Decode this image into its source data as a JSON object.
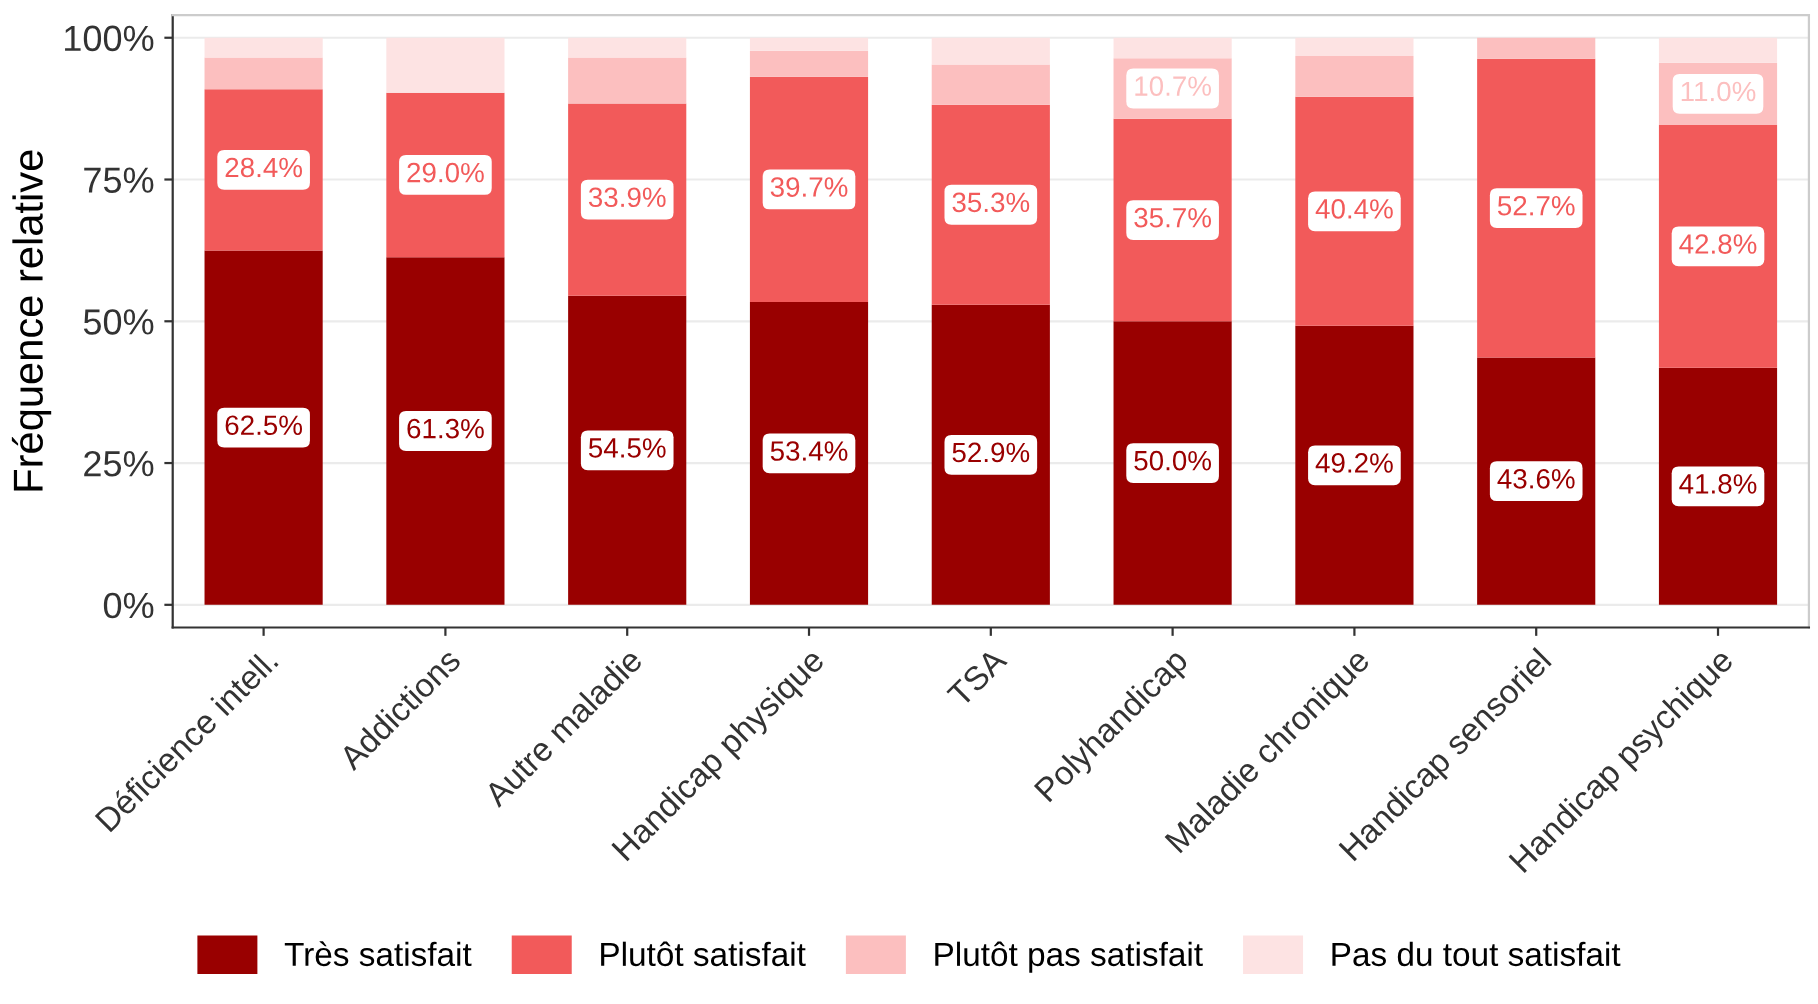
{
  "chart_data": {
    "type": "bar",
    "stacked": true,
    "ylabel": "Fréquence relative",
    "categories": [
      "Déficience intell.",
      "Addictions",
      "Autre maladie",
      "Handicap physique",
      "TSA",
      "Polyhandicap",
      "Maladie chronique",
      "Handicap sensoriel",
      "Handicap psychique"
    ],
    "series": [
      {
        "name": "Très satisfait",
        "color": "#990000",
        "values": [
          62.5,
          61.3,
          54.5,
          53.4,
          52.9,
          50.0,
          49.2,
          43.6,
          41.8
        ],
        "value_labels": [
          "62.5%",
          "61.3%",
          "54.5%",
          "53.4%",
          "52.9%",
          "50.0%",
          "49.2%",
          "43.6%",
          "41.8%"
        ]
      },
      {
        "name": "Plutôt satisfait",
        "color": "#f25a5a",
        "values": [
          28.4,
          29.0,
          33.9,
          39.7,
          35.3,
          35.7,
          40.4,
          52.7,
          42.8
        ],
        "value_labels": [
          "28.4%",
          "29.0%",
          "33.9%",
          "39.7%",
          "35.3%",
          "35.7%",
          "40.4%",
          "52.7%",
          "42.8%"
        ]
      },
      {
        "name": "Plutôt pas satisfait",
        "color": "#fcbfbf",
        "values": [
          5.6,
          0,
          8.1,
          4.6,
          7.1,
          10.7,
          7.2,
          3.7,
          11.0
        ],
        "value_labels": [
          null,
          null,
          null,
          null,
          null,
          "10.7%",
          null,
          null,
          "11.0%"
        ]
      },
      {
        "name": "Pas du tout satisfait",
        "color": "#fde3e3",
        "values": [
          3.5,
          9.7,
          3.5,
          2.3,
          4.7,
          3.6,
          3.2,
          0,
          4.4
        ]
      }
    ],
    "ylim": [
      -4,
      104
    ],
    "yticks": [
      {
        "value": 0,
        "label": "0%"
      },
      {
        "value": 25,
        "label": "25%"
      },
      {
        "value": 50,
        "label": "50%"
      },
      {
        "value": 75,
        "label": "75%"
      },
      {
        "value": 100,
        "label": "100%"
      }
    ],
    "grid": "y",
    "legend": "bottom"
  }
}
